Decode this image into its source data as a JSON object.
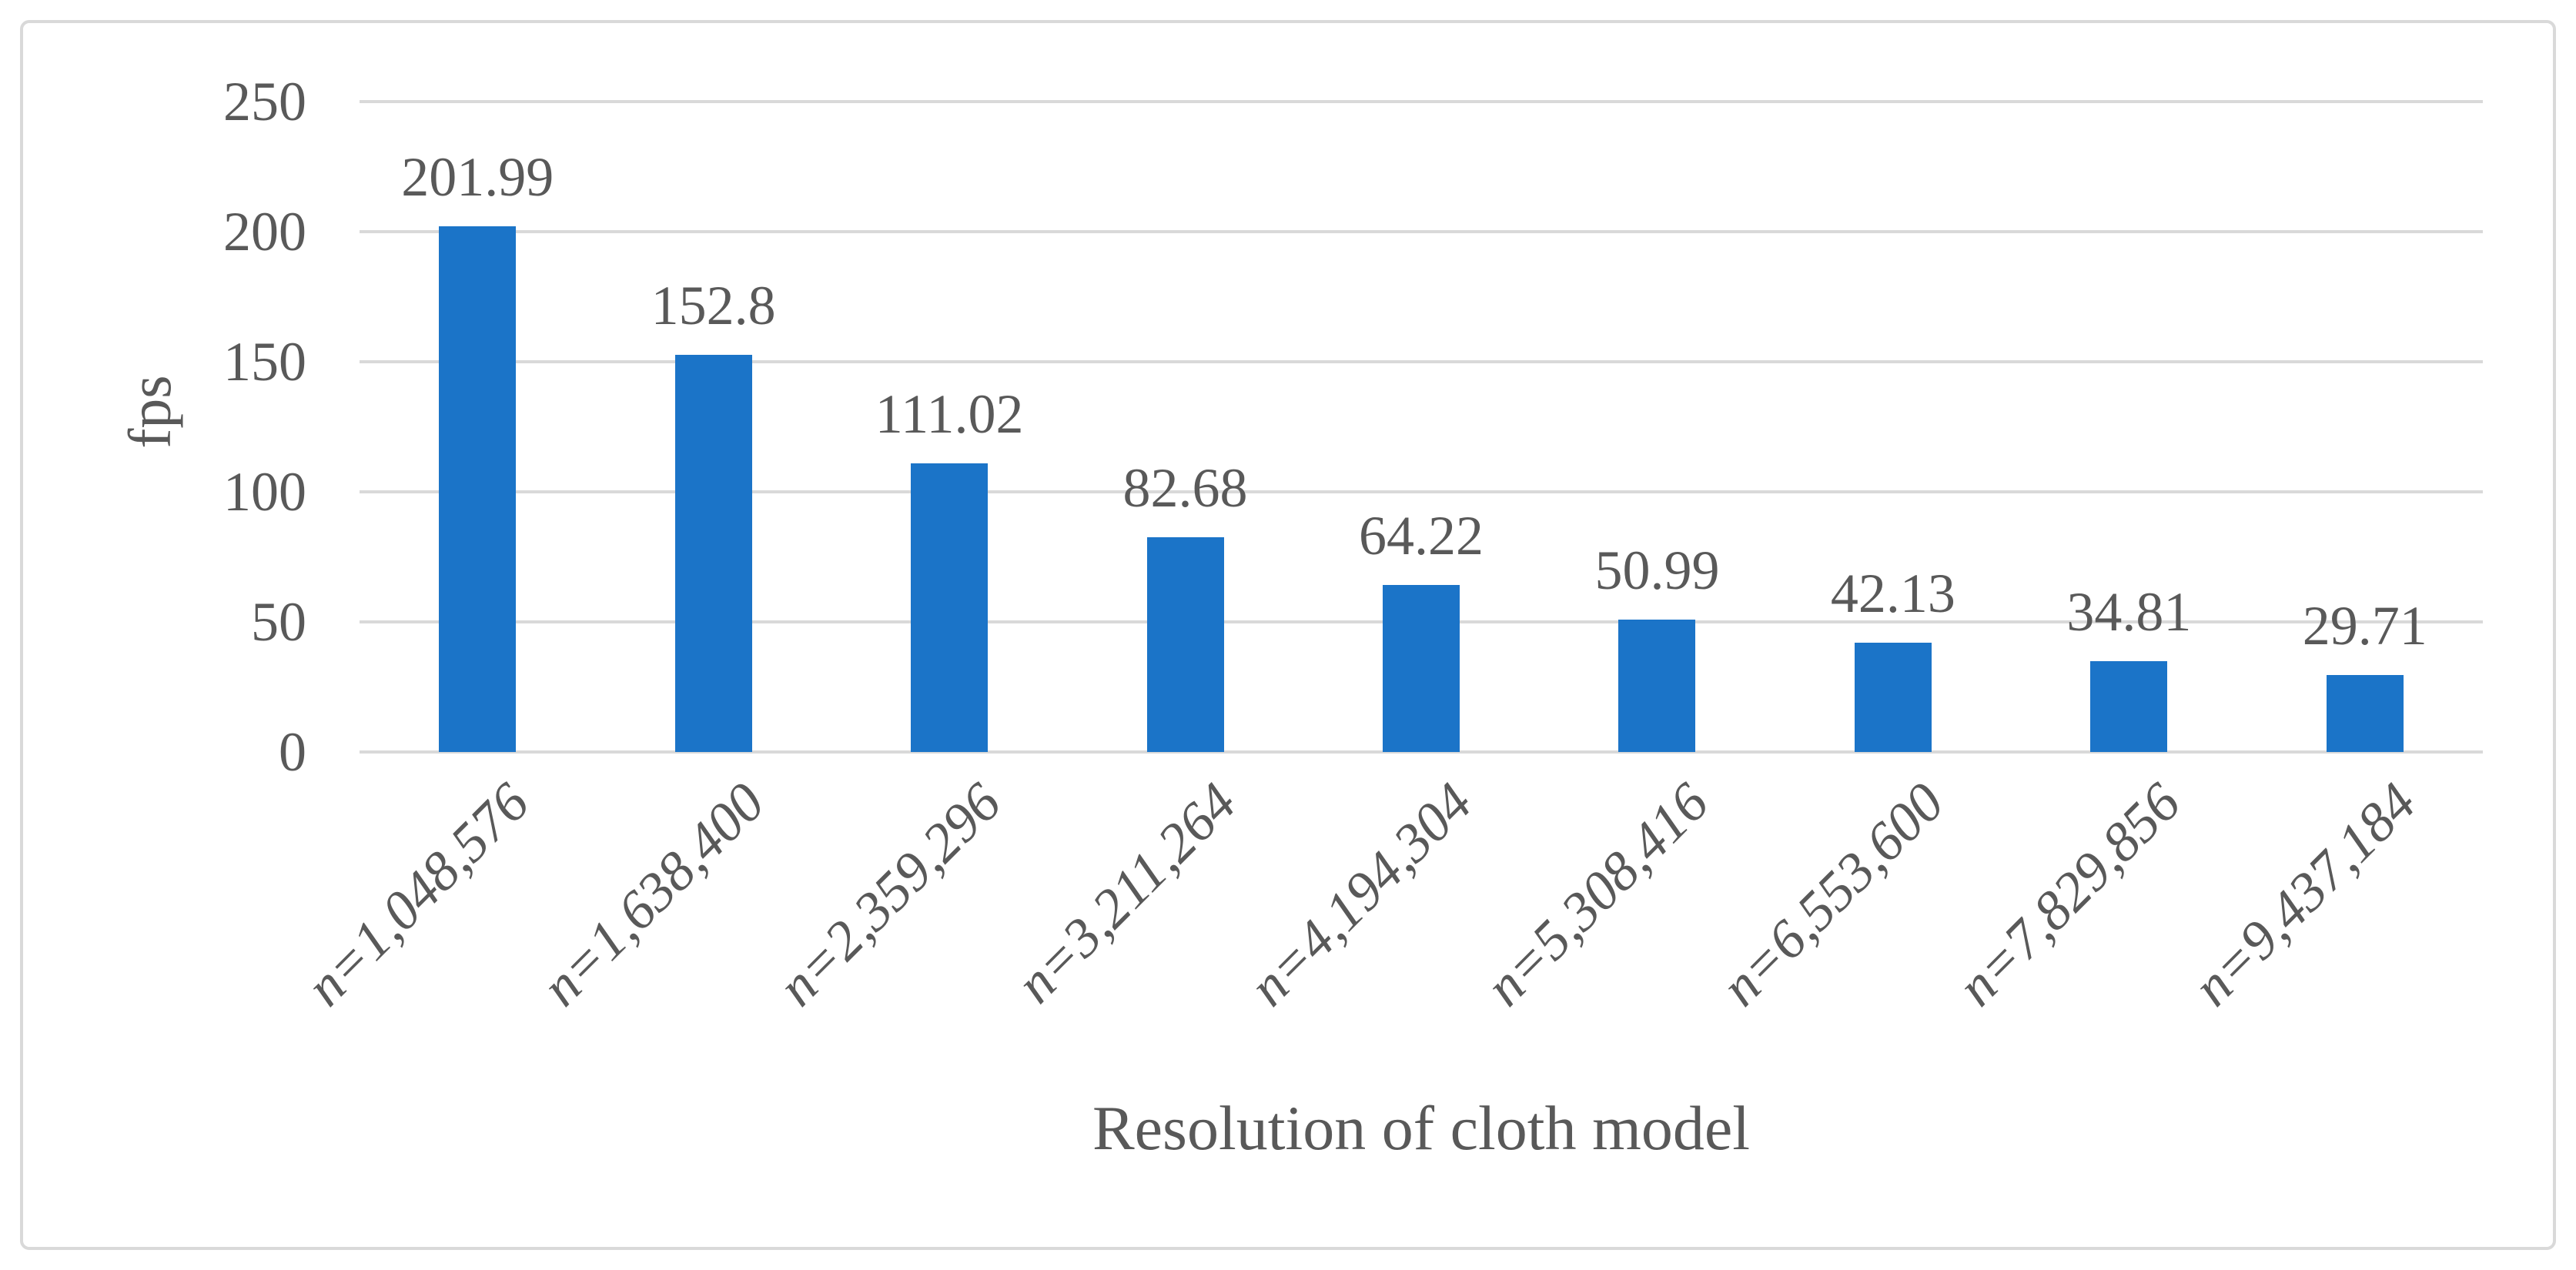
{
  "chart_data": {
    "type": "bar",
    "title": "",
    "xlabel": "Resolution of cloth model",
    "ylabel": "fps",
    "categories": [
      "n=1,048,576",
      "n=1,638,400",
      "n=2,359,296",
      "n=3,211,264",
      "n=4,194,304",
      "n=5,308,416",
      "n=6,553,600",
      "n=7,829,856",
      "n=9,437,184"
    ],
    "values": [
      201.99,
      152.8,
      111.02,
      82.68,
      64.22,
      50.99,
      42.13,
      34.81,
      29.71
    ],
    "value_labels": [
      "201.99",
      "152.8",
      "111.02",
      "82.68",
      "64.22",
      "50.99",
      "42.13",
      "34.81",
      "29.71"
    ],
    "ylim": [
      0,
      250
    ],
    "yticks": [
      0,
      50,
      100,
      150,
      200,
      250
    ],
    "grid": true,
    "legend": "none",
    "colors": {
      "bar": "#1b74c8",
      "text": "#595959",
      "gridline": "#d9d9d9",
      "frame": "#d9d9d9",
      "background": "#ffffff"
    }
  }
}
